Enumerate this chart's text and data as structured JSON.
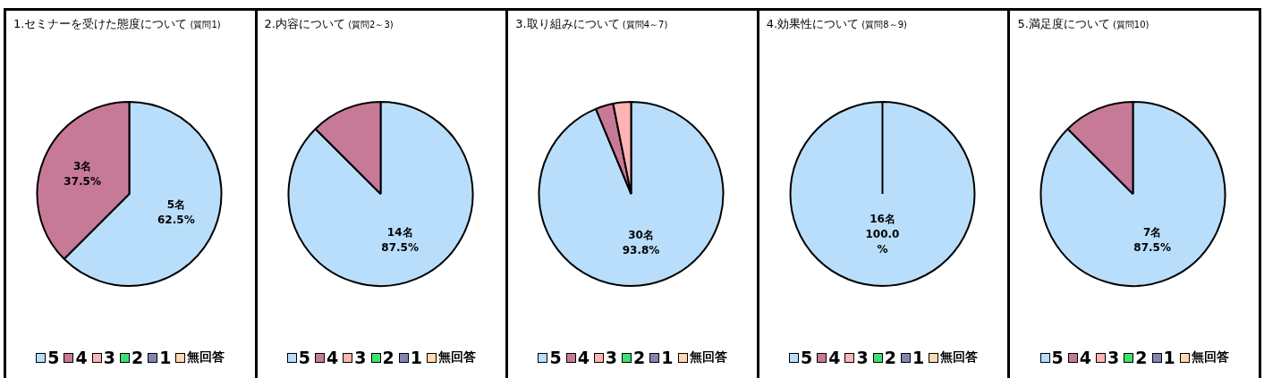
{
  "chart_data": [
    {
      "type": "pie",
      "title": "1.セミナーを受けた態度について",
      "subtitle": "(質問1)",
      "categories": [
        "5",
        "4",
        "3",
        "2",
        "1",
        "無回答"
      ],
      "values": [
        5,
        3,
        0,
        0,
        0,
        0
      ],
      "colors": [
        "#b8defc",
        "#c77a97",
        "#ffb4b4",
        "#3ee072",
        "#8484b4",
        "#ffd9b0"
      ],
      "value_labels": [
        "5名\n62.5%",
        "3名\n37.5%",
        null,
        null,
        null,
        null
      ],
      "legend": "bottom"
    },
    {
      "type": "pie",
      "title": "2.内容について",
      "subtitle": "(質問2～3)",
      "categories": [
        "5",
        "4",
        "3",
        "2",
        "1",
        "無回答"
      ],
      "values": [
        14,
        2,
        0,
        0,
        0,
        0
      ],
      "colors": [
        "#b8defc",
        "#c77a97",
        "#ffb4b4",
        "#3ee072",
        "#8484b4",
        "#ffd9b0"
      ],
      "value_labels": [
        "14名\n87.5%",
        null,
        null,
        null,
        null,
        null
      ],
      "legend": "bottom"
    },
    {
      "type": "pie",
      "title": "3.取り組みについて",
      "subtitle": "(質問4～7)",
      "categories": [
        "5",
        "4",
        "3",
        "2",
        "1",
        "無回答"
      ],
      "values": [
        30,
        1,
        1,
        0,
        0,
        0
      ],
      "colors": [
        "#b8defc",
        "#c77a97",
        "#ffb4b4",
        "#3ee072",
        "#8484b4",
        "#ffd9b0"
      ],
      "value_labels": [
        "30名\n93.8%",
        null,
        null,
        null,
        null,
        null
      ],
      "legend": "bottom"
    },
    {
      "type": "pie",
      "title": "4.効果性について",
      "subtitle": "(質問8～9)",
      "categories": [
        "5",
        "4",
        "3",
        "2",
        "1",
        "無回答"
      ],
      "values": [
        16,
        0,
        0,
        0,
        0,
        0
      ],
      "colors": [
        "#b8defc",
        "#c77a97",
        "#ffb4b4",
        "#3ee072",
        "#8484b4",
        "#ffd9b0"
      ],
      "value_labels": [
        "16名\n100.0\n%",
        null,
        null,
        null,
        null,
        null
      ],
      "legend": "bottom"
    },
    {
      "type": "pie",
      "title": "5.満足度について",
      "subtitle": "(質問10)",
      "categories": [
        "5",
        "4",
        "3",
        "2",
        "1",
        "無回答"
      ],
      "values": [
        7,
        1,
        0,
        0,
        0,
        0
      ],
      "colors": [
        "#b8defc",
        "#c77a97",
        "#ffb4b4",
        "#3ee072",
        "#8484b4",
        "#ffd9b0"
      ],
      "value_labels": [
        "7名\n87.5%",
        null,
        null,
        null,
        null,
        null
      ],
      "legend": "bottom"
    }
  ]
}
